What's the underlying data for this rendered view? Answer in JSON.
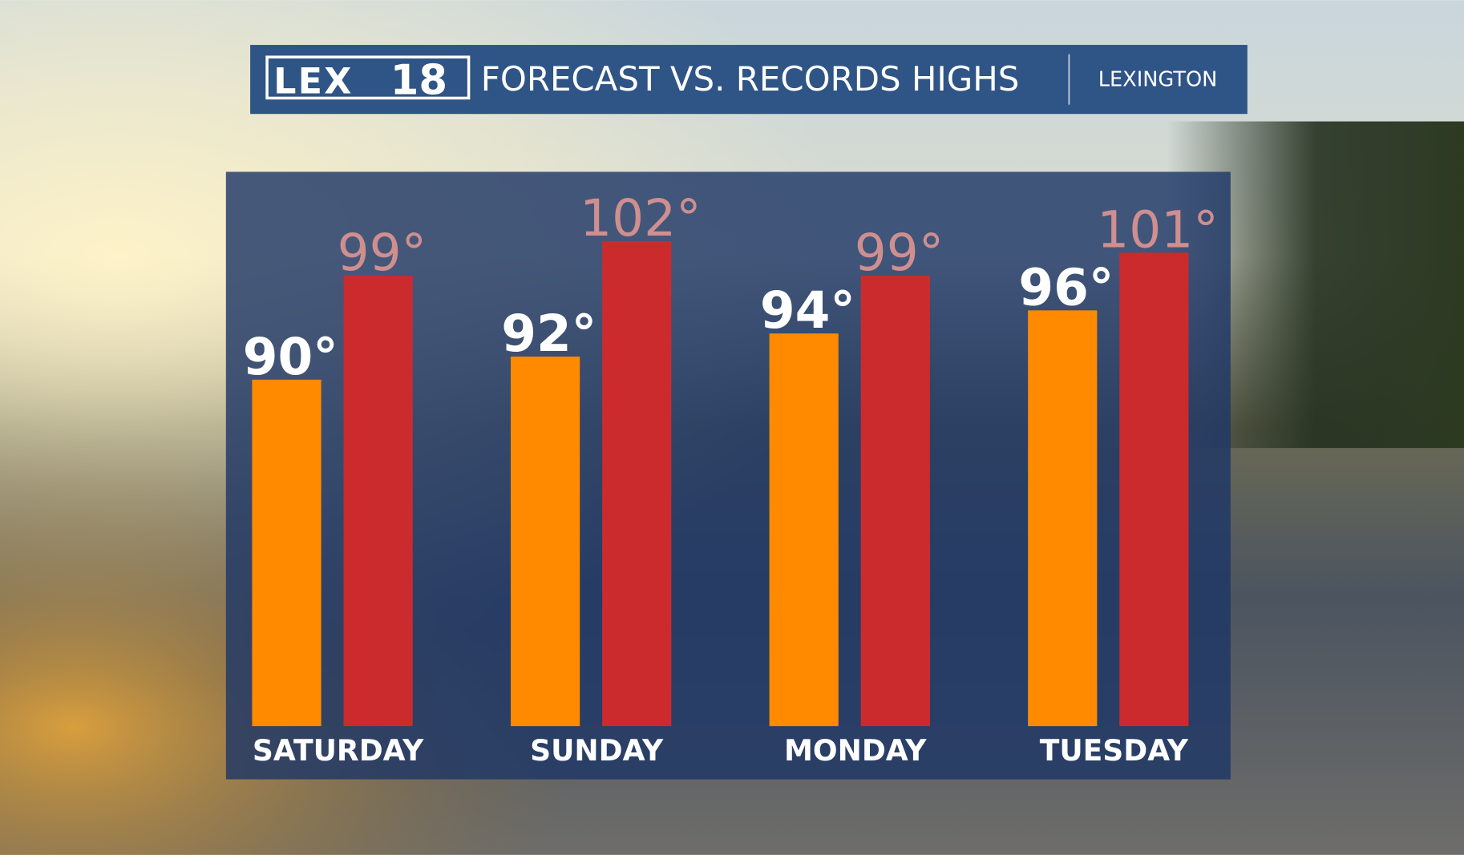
{
  "chart_data": {
    "type": "bar",
    "logo": [
      "LEX",
      "18"
    ],
    "title": "FORECAST VS. RECORDS HIGHS",
    "location": "LEXINGTON",
    "categories": [
      "SATURDAY",
      "SUNDAY",
      "MONDAY",
      "TUESDAY"
    ],
    "series": [
      {
        "color": "#ff8a00",
        "label_color": "#ffffff",
        "values": [
          90,
          92,
          94,
          96
        ],
        "value_labels": [
          "90°",
          "92°",
          "94°",
          "96°"
        ]
      },
      {
        "color": "#cc2b2e",
        "label_color": "#cf8f8f",
        "values": [
          99,
          102,
          99,
          101
        ],
        "value_labels": [
          "99°",
          "102°",
          "99°",
          "101°"
        ]
      }
    ],
    "ylim": [
      60,
      108
    ]
  }
}
